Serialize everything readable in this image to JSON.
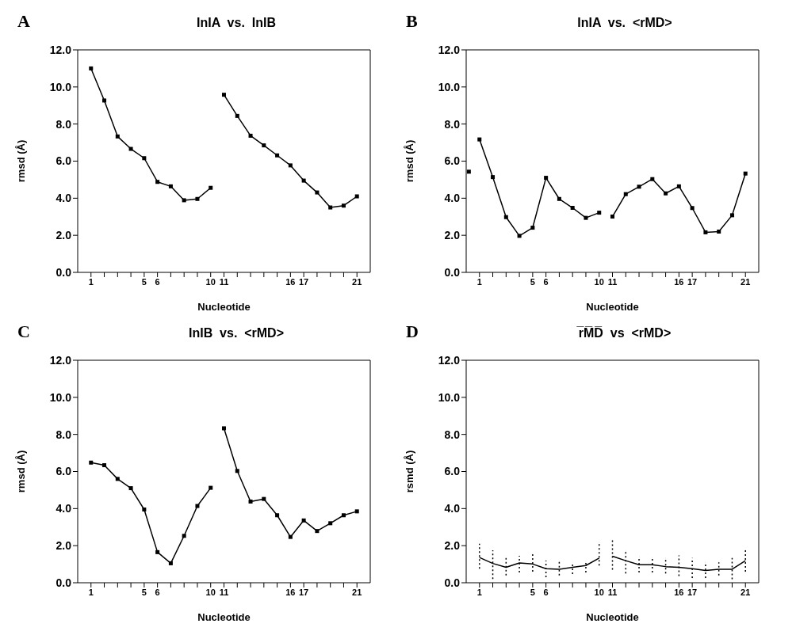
{
  "chart_data": [
    {
      "type": "line",
      "title": "InIA  vs.  InIB",
      "annotations": [
        "A"
      ],
      "xlabel": "Nucleotide",
      "ylabel": "rmsd  (Å)",
      "marker": "square",
      "line_style": "solid",
      "grid": false,
      "legend": false,
      "xlim": [
        0,
        22
      ],
      "xticks": [
        1,
        {
          "value": 2,
          "label": null
        },
        {
          "value": 3,
          "label": null
        },
        {
          "value": 4,
          "label": null
        },
        5,
        6,
        {
          "value": 7,
          "label": null
        },
        {
          "value": 8,
          "label": null
        },
        {
          "value": 9,
          "label": null
        },
        10,
        11,
        {
          "value": 12,
          "label": null
        },
        {
          "value": 13,
          "label": null
        },
        {
          "value": 14,
          "label": null
        },
        {
          "value": 15,
          "label": null
        },
        16,
        17,
        {
          "value": 18,
          "label": null
        },
        {
          "value": 19,
          "label": null
        },
        {
          "value": 20,
          "label": null
        },
        21
      ],
      "ylim": [
        0,
        12
      ],
      "yticks": [
        {
          "value": 0,
          "label": "0.0"
        },
        {
          "value": 2,
          "label": "2.0"
        },
        {
          "value": 4,
          "label": "4.0"
        },
        {
          "value": 6,
          "label": "6.0"
        },
        {
          "value": 8,
          "label": "8.0"
        },
        {
          "value": 10,
          "label": "10.0"
        },
        {
          "value": 12,
          "label": "12.0"
        }
      ],
      "series": [
        {
          "color": "#000000",
          "x": [
            1,
            2,
            3,
            4,
            5,
            6,
            7,
            8,
            9,
            10
          ],
          "values": [
            11.0,
            9.27,
            7.33,
            6.66,
            6.16,
            4.88,
            4.64,
            3.89,
            3.96,
            4.56
          ]
        },
        {
          "color": "#000000",
          "x": [
            11,
            12,
            13,
            14,
            15,
            16,
            17,
            18,
            19,
            20,
            21
          ],
          "values": [
            9.58,
            8.44,
            7.37,
            6.85,
            6.31,
            5.77,
            4.95,
            4.31,
            3.5,
            3.6,
            4.1
          ]
        }
      ]
    },
    {
      "type": "line",
      "title": "InIA  vs.  <rMD>",
      "annotations": [
        "B"
      ],
      "xlabel": "Nucleotide",
      "ylabel": "rmsd  (Å)",
      "marker": "square",
      "line_style": "solid",
      "grid": false,
      "legend": false,
      "xlim": [
        0,
        22
      ],
      "xticks": [
        1,
        {
          "value": 2,
          "label": null
        },
        {
          "value": 3,
          "label": null
        },
        {
          "value": 4,
          "label": null
        },
        5,
        6,
        {
          "value": 7,
          "label": null
        },
        {
          "value": 8,
          "label": null
        },
        {
          "value": 9,
          "label": null
        },
        10,
        11,
        {
          "value": 12,
          "label": null
        },
        {
          "value": 13,
          "label": null
        },
        {
          "value": 14,
          "label": null
        },
        {
          "value": 15,
          "label": null
        },
        16,
        17,
        {
          "value": 18,
          "label": null
        },
        {
          "value": 19,
          "label": null
        },
        {
          "value": 20,
          "label": null
        },
        21
      ],
      "ylim": [
        0,
        12
      ],
      "yticks": [
        {
          "value": 0,
          "label": "0.0"
        },
        {
          "value": 2,
          "label": "2.0"
        },
        {
          "value": 4,
          "label": "4.0"
        },
        {
          "value": 6,
          "label": "6.0"
        },
        {
          "value": 8,
          "label": "8.0"
        },
        {
          "value": 10,
          "label": "10.0"
        },
        {
          "value": 12,
          "label": "12.0"
        }
      ],
      "series": [
        {
          "type": "scatter",
          "color": "#000000",
          "x": [
            0.2
          ],
          "values": [
            5.43
          ]
        },
        {
          "color": "#000000",
          "x": [
            1,
            2,
            3,
            4,
            5,
            6,
            7,
            8,
            9,
            10
          ],
          "values": [
            7.17,
            5.14,
            2.98,
            1.97,
            2.41,
            5.1,
            3.96,
            3.48,
            2.94,
            3.22
          ]
        },
        {
          "color": "#000000",
          "x": [
            11,
            12,
            13,
            14,
            15,
            16,
            17,
            18,
            19,
            20,
            21
          ],
          "values": [
            3.01,
            4.22,
            4.62,
            5.03,
            4.26,
            4.64,
            3.47,
            2.16,
            2.2,
            3.08,
            5.33
          ]
        }
      ]
    },
    {
      "type": "line",
      "title": "InIB  vs.  <rMD>",
      "annotations": [
        "C"
      ],
      "xlabel": "Nucleotide",
      "ylabel": "rmsd  (Å)",
      "marker": "square",
      "line_style": "solid",
      "grid": false,
      "legend": false,
      "xlim": [
        0,
        22
      ],
      "xticks": [
        1,
        {
          "value": 2,
          "label": null
        },
        {
          "value": 3,
          "label": null
        },
        {
          "value": 4,
          "label": null
        },
        5,
        6,
        {
          "value": 7,
          "label": null
        },
        {
          "value": 8,
          "label": null
        },
        {
          "value": 9,
          "label": null
        },
        10,
        11,
        {
          "value": 12,
          "label": null
        },
        {
          "value": 13,
          "label": null
        },
        {
          "value": 14,
          "label": null
        },
        {
          "value": 15,
          "label": null
        },
        16,
        17,
        {
          "value": 18,
          "label": null
        },
        {
          "value": 19,
          "label": null
        },
        {
          "value": 20,
          "label": null
        },
        21
      ],
      "ylim": [
        0,
        12
      ],
      "yticks": [
        {
          "value": 0,
          "label": "0.0"
        },
        {
          "value": 2,
          "label": "2.0"
        },
        {
          "value": 4,
          "label": "4.0"
        },
        {
          "value": 6,
          "label": "6.0"
        },
        {
          "value": 8,
          "label": "8.0"
        },
        {
          "value": 10,
          "label": "10.0"
        },
        {
          "value": 12,
          "label": "12.0"
        }
      ],
      "series": [
        {
          "color": "#000000",
          "x": [
            1,
            2,
            3,
            4,
            5,
            6,
            7,
            8,
            9,
            10
          ],
          "values": [
            6.48,
            6.34,
            5.6,
            5.1,
            3.95,
            1.65,
            1.05,
            2.53,
            4.14,
            5.12
          ]
        },
        {
          "color": "#000000",
          "x": [
            11,
            12,
            13,
            14,
            15,
            16,
            17,
            18,
            19,
            20,
            21
          ],
          "values": [
            8.33,
            6.03,
            4.38,
            4.52,
            3.64,
            2.47,
            3.36,
            2.79,
            3.21,
            3.64,
            3.85
          ]
        }
      ]
    },
    {
      "type": "line",
      "title": "r̅M̅D̅  vs  <rMD>",
      "annotations": [
        "D"
      ],
      "xlabel": "Nucleotide",
      "ylabel": "rsmd  (Å)",
      "marker": "none",
      "line_style": "solid",
      "grid": false,
      "legend": false,
      "xlim": [
        0,
        22
      ],
      "xticks": [
        1,
        {
          "value": 2,
          "label": null
        },
        {
          "value": 3,
          "label": null
        },
        {
          "value": 4,
          "label": null
        },
        5,
        6,
        {
          "value": 7,
          "label": null
        },
        {
          "value": 8,
          "label": null
        },
        {
          "value": 9,
          "label": null
        },
        10,
        11,
        {
          "value": 12,
          "label": null
        },
        {
          "value": 13,
          "label": null
        },
        {
          "value": 14,
          "label": null
        },
        {
          "value": 15,
          "label": null
        },
        16,
        17,
        {
          "value": 18,
          "label": null
        },
        {
          "value": 19,
          "label": null
        },
        {
          "value": 20,
          "label": null
        },
        21
      ],
      "ylim": [
        0,
        12
      ],
      "yticks": [
        {
          "value": 0,
          "label": "0.0"
        },
        {
          "value": 2,
          "label": "2.0"
        },
        {
          "value": 4,
          "label": "4.0"
        },
        {
          "value": 6,
          "label": "6.0"
        },
        {
          "value": 8,
          "label": "8.0"
        },
        {
          "value": 10,
          "label": "10.0"
        },
        {
          "value": 12,
          "label": "12.0"
        }
      ],
      "series": [
        {
          "color": "#000000",
          "x": [
            1,
            2,
            3,
            4,
            5,
            6,
            7,
            8,
            9,
            10
          ],
          "values": [
            1.36,
            1.04,
            0.83,
            1.07,
            1.01,
            0.76,
            0.73,
            0.83,
            0.93,
            1.33
          ],
          "errors": [
            [
              0.76,
              2.1
            ],
            [
              0.2,
              1.75
            ],
            [
              0.4,
              1.45
            ],
            [
              0.55,
              1.45
            ],
            [
              0.6,
              1.55
            ],
            [
              0.3,
              1.2
            ],
            [
              0.4,
              1.15
            ],
            [
              0.47,
              1.1
            ],
            [
              0.55,
              1.15
            ],
            [
              0.93,
              2.15
            ]
          ]
        },
        {
          "color": "#000000",
          "x": [
            11,
            12,
            13,
            14,
            15,
            16,
            17,
            18,
            19,
            20,
            21
          ],
          "values": [
            1.43,
            1.19,
            0.97,
            0.97,
            0.87,
            0.83,
            0.76,
            0.66,
            0.73,
            0.73,
            1.19
          ],
          "errors": [
            [
              0.7,
              2.3
            ],
            [
              0.5,
              1.7
            ],
            [
              0.55,
              1.4
            ],
            [
              0.55,
              1.35
            ],
            [
              0.5,
              1.33
            ],
            [
              0.36,
              1.47
            ],
            [
              0.26,
              1.33
            ],
            [
              0.26,
              1.1
            ],
            [
              0.4,
              1.1
            ],
            [
              0.19,
              1.33
            ],
            [
              0.6,
              1.75
            ]
          ]
        }
      ]
    }
  ]
}
